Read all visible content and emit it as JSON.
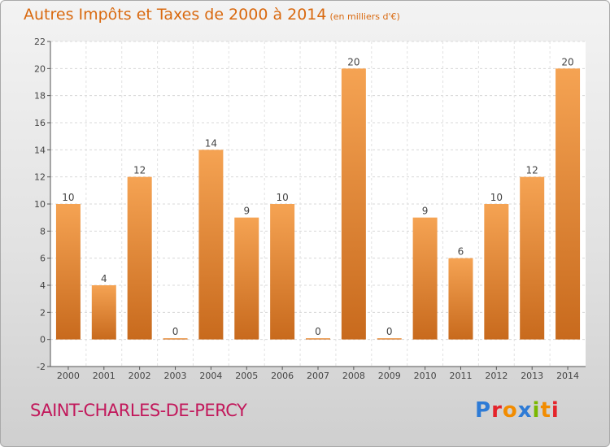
{
  "header": {
    "title": "Autres Impôts et Taxes de 2000 à 2014",
    "unit": "(en milliers d'€)"
  },
  "footer": {
    "place": "SAINT-CHARLES-DE-PERCY",
    "logo": [
      "P",
      "r",
      "o",
      "x",
      "i",
      "t",
      "i"
    ]
  },
  "colors": {
    "title": "#d9690f",
    "bar_top": "#f5a353",
    "bar_bottom": "#c86a1d",
    "place": "#c2185b"
  },
  "chart_data": {
    "type": "bar",
    "categories": [
      "2000",
      "2001",
      "2002",
      "2003",
      "2004",
      "2005",
      "2006",
      "2007",
      "2008",
      "2009",
      "2010",
      "2011",
      "2012",
      "2013",
      "2014"
    ],
    "values": [
      10,
      4,
      12,
      0,
      14,
      9,
      10,
      0,
      20,
      0,
      9,
      6,
      10,
      12,
      20
    ],
    "ylim": [
      -2,
      22
    ],
    "yticks": [
      -2,
      0,
      2,
      4,
      6,
      8,
      10,
      12,
      14,
      16,
      18,
      20,
      22
    ],
    "grid": true,
    "xlabel": "",
    "ylabel": ""
  }
}
